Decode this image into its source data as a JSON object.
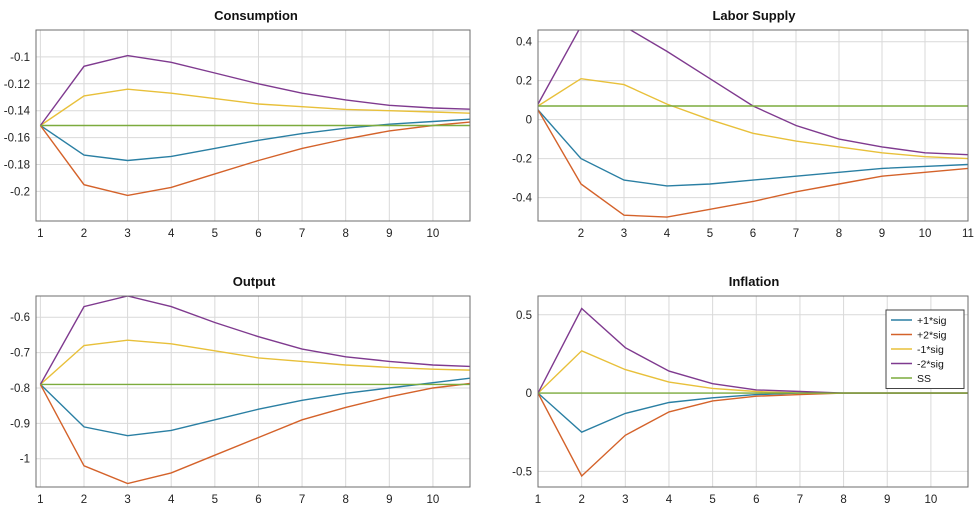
{
  "colors": {
    "p1sig": "#2a7fa3",
    "p2sig": "#d4622a",
    "m1sig": "#e8c03a",
    "m2sig": "#7f3a8f",
    "ss": "#7cab3d"
  },
  "legend": {
    "placement": "top-right of Inflation panel",
    "entries": [
      {
        "key": "p1sig",
        "label": "+1*sig"
      },
      {
        "key": "p2sig",
        "label": "+2*sig"
      },
      {
        "key": "m1sig",
        "label": "-1*sig"
      },
      {
        "key": "m2sig",
        "label": "-2*sig"
      },
      {
        "key": "ss",
        "label": "SS"
      }
    ]
  },
  "chart_data": [
    {
      "type": "line",
      "title": "Consumption",
      "xlabel": "",
      "ylabel": "",
      "xlim": [
        0.9,
        10.85
      ],
      "ylim": [
        -0.222,
        -0.08
      ],
      "x_ticks": [
        1,
        2,
        3,
        4,
        5,
        6,
        7,
        8,
        9,
        10
      ],
      "y_ticks": [
        -0.2,
        -0.18,
        -0.16,
        -0.14,
        -0.12,
        -0.1
      ],
      "y_tick_labels": [
        "-0.2",
        "-0.18",
        "-0.16",
        "-0.14",
        "-0.12",
        "-0.1"
      ],
      "grid": true,
      "x": [
        1,
        2,
        3,
        4,
        5,
        6,
        7,
        8,
        9,
        10,
        11
      ],
      "series": [
        {
          "key": "p1sig",
          "name": "+1*sig",
          "values": [
            -0.151,
            -0.173,
            -0.177,
            -0.174,
            -0.168,
            -0.162,
            -0.157,
            -0.153,
            -0.15,
            -0.148,
            -0.146
          ]
        },
        {
          "key": "p2sig",
          "name": "+2*sig",
          "values": [
            -0.151,
            -0.195,
            -0.203,
            -0.197,
            -0.187,
            -0.177,
            -0.168,
            -0.161,
            -0.155,
            -0.151,
            -0.148
          ]
        },
        {
          "key": "m1sig",
          "name": "-1*sig",
          "values": [
            -0.151,
            -0.129,
            -0.124,
            -0.127,
            -0.131,
            -0.135,
            -0.137,
            -0.139,
            -0.14,
            -0.141,
            -0.142
          ]
        },
        {
          "key": "m2sig",
          "name": "-2*sig",
          "values": [
            -0.151,
            -0.107,
            -0.099,
            -0.104,
            -0.112,
            -0.12,
            -0.127,
            -0.132,
            -0.136,
            -0.138,
            -0.139
          ]
        },
        {
          "key": "ss",
          "name": "SS",
          "values": [
            -0.151,
            -0.151,
            -0.151,
            -0.151,
            -0.151,
            -0.151,
            -0.151,
            -0.151,
            -0.151,
            -0.151,
            -0.151
          ]
        }
      ]
    },
    {
      "type": "line",
      "title": "Labor Supply",
      "xlabel": "",
      "ylabel": "",
      "xlim": [
        1.0,
        11.0
      ],
      "ylim": [
        -0.52,
        0.46
      ],
      "x_ticks": [
        2,
        3,
        4,
        5,
        6,
        7,
        8,
        9,
        10,
        11
      ],
      "y_ticks": [
        -0.4,
        -0.2,
        0,
        0.2,
        0.4
      ],
      "y_tick_labels": [
        "-0.4",
        "-0.2",
        "0",
        "0.2",
        "0.4"
      ],
      "grid": true,
      "x": [
        1,
        2,
        3,
        4,
        5,
        6,
        7,
        8,
        9,
        10,
        11
      ],
      "series": [
        {
          "key": "p1sig",
          "name": "+1*sig",
          "values": [
            0.05,
            -0.2,
            -0.31,
            -0.34,
            -0.33,
            -0.31,
            -0.29,
            -0.27,
            -0.25,
            -0.24,
            -0.23
          ]
        },
        {
          "key": "p2sig",
          "name": "+2*sig",
          "values": [
            0.05,
            -0.33,
            -0.49,
            -0.5,
            -0.46,
            -0.42,
            -0.37,
            -0.33,
            -0.29,
            -0.27,
            -0.25
          ]
        },
        {
          "key": "m1sig",
          "name": "-1*sig",
          "values": [
            0.07,
            0.21,
            0.18,
            0.08,
            0.0,
            -0.07,
            -0.11,
            -0.14,
            -0.17,
            -0.19,
            -0.2
          ]
        },
        {
          "key": "m2sig",
          "name": "-2*sig",
          "values": [
            0.08,
            0.48,
            0.48,
            0.35,
            0.21,
            0.07,
            -0.03,
            -0.1,
            -0.14,
            -0.17,
            -0.18
          ]
        },
        {
          "key": "ss",
          "name": "SS",
          "values": [
            0.07,
            0.07,
            0.07,
            0.07,
            0.07,
            0.07,
            0.07,
            0.07,
            0.07,
            0.07,
            0.07
          ]
        }
      ]
    },
    {
      "type": "line",
      "title": "Output",
      "xlabel": "",
      "ylabel": "",
      "xlim": [
        0.9,
        10.85
      ],
      "ylim": [
        -1.08,
        -0.54
      ],
      "x_ticks": [
        1,
        2,
        3,
        4,
        5,
        6,
        7,
        8,
        9,
        10
      ],
      "y_ticks": [
        -1.0,
        -0.9,
        -0.8,
        -0.7,
        -0.6
      ],
      "y_tick_labels": [
        "-1",
        "-0.9",
        "-0.8",
        "-0.7",
        "-0.6"
      ],
      "grid": true,
      "x": [
        1,
        2,
        3,
        4,
        5,
        6,
        7,
        8,
        9,
        10,
        11
      ],
      "series": [
        {
          "key": "p1sig",
          "name": "+1*sig",
          "values": [
            -0.79,
            -0.91,
            -0.935,
            -0.92,
            -0.89,
            -0.86,
            -0.835,
            -0.815,
            -0.8,
            -0.785,
            -0.77
          ]
        },
        {
          "key": "p2sig",
          "name": "+2*sig",
          "values": [
            -0.79,
            -1.02,
            -1.07,
            -1.04,
            -0.99,
            -0.94,
            -0.89,
            -0.855,
            -0.825,
            -0.8,
            -0.785
          ]
        },
        {
          "key": "m1sig",
          "name": "-1*sig",
          "values": [
            -0.79,
            -0.68,
            -0.665,
            -0.675,
            -0.695,
            -0.715,
            -0.725,
            -0.735,
            -0.742,
            -0.747,
            -0.75
          ]
        },
        {
          "key": "m2sig",
          "name": "-2*sig",
          "values": [
            -0.79,
            -0.57,
            -0.54,
            -0.57,
            -0.615,
            -0.655,
            -0.69,
            -0.712,
            -0.725,
            -0.735,
            -0.74
          ]
        },
        {
          "key": "ss",
          "name": "SS",
          "values": [
            -0.79,
            -0.79,
            -0.79,
            -0.79,
            -0.79,
            -0.79,
            -0.79,
            -0.79,
            -0.79,
            -0.79,
            -0.79
          ]
        }
      ]
    },
    {
      "type": "line",
      "title": "Inflation",
      "xlabel": "",
      "ylabel": "",
      "xlim": [
        1.0,
        10.85
      ],
      "ylim": [
        -0.6,
        0.62
      ],
      "x_ticks": [
        1,
        2,
        3,
        4,
        5,
        6,
        7,
        8,
        9,
        10
      ],
      "y_ticks": [
        -0.5,
        0,
        0.5
      ],
      "y_tick_labels": [
        "-0.5",
        "0",
        "0.5"
      ],
      "grid": true,
      "x": [
        1,
        2,
        3,
        4,
        5,
        6,
        7,
        8,
        9,
        10,
        11
      ],
      "series": [
        {
          "key": "p1sig",
          "name": "+1*sig",
          "values": [
            0.0,
            -0.25,
            -0.13,
            -0.06,
            -0.03,
            -0.01,
            0.0,
            0.0,
            0.0,
            0.0,
            0.0
          ]
        },
        {
          "key": "p2sig",
          "name": "+2*sig",
          "values": [
            0.0,
            -0.53,
            -0.27,
            -0.12,
            -0.05,
            -0.02,
            -0.01,
            0.0,
            0.0,
            0.0,
            0.0
          ]
        },
        {
          "key": "m1sig",
          "name": "-1*sig",
          "values": [
            0.0,
            0.27,
            0.15,
            0.07,
            0.03,
            0.01,
            0.0,
            0.0,
            0.0,
            0.0,
            0.0
          ]
        },
        {
          "key": "m2sig",
          "name": "-2*sig",
          "values": [
            0.0,
            0.54,
            0.29,
            0.14,
            0.06,
            0.02,
            0.01,
            0.0,
            0.0,
            0.0,
            0.0
          ]
        },
        {
          "key": "ss",
          "name": "SS",
          "values": [
            0.0,
            0.0,
            0.0,
            0.0,
            0.0,
            0.0,
            0.0,
            0.0,
            0.0,
            0.0,
            0.0
          ]
        }
      ]
    }
  ]
}
